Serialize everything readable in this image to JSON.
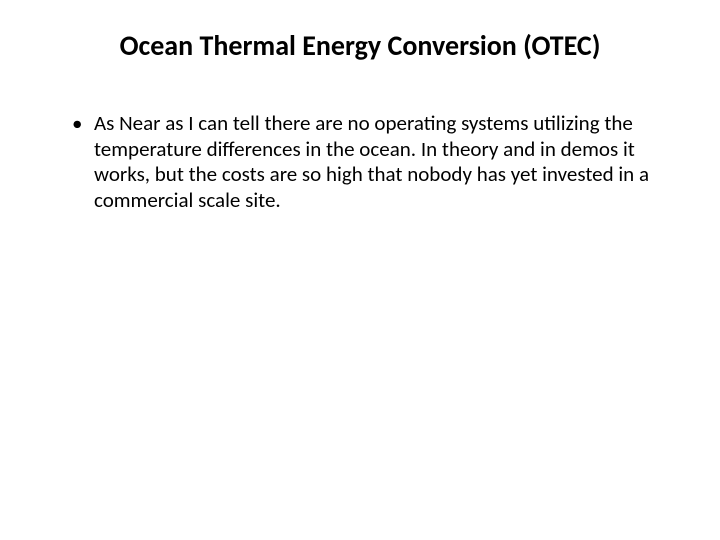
{
  "slide": {
    "title": "Ocean Thermal Energy Conversion (OTEC)",
    "bullets": [
      "As Near as I can tell there are no operating systems utilizing the temperature differences in the ocean.  In theory and in demos it works, but the costs are so high that nobody has yet invested in a commercial scale site."
    ]
  },
  "styling": {
    "background_color": "#ffffff",
    "text_color": "#000000",
    "title_fontsize": 28,
    "title_fontweight": 700,
    "body_fontsize": 21,
    "body_lineheight": 1.22,
    "font_family": "Calibri"
  }
}
